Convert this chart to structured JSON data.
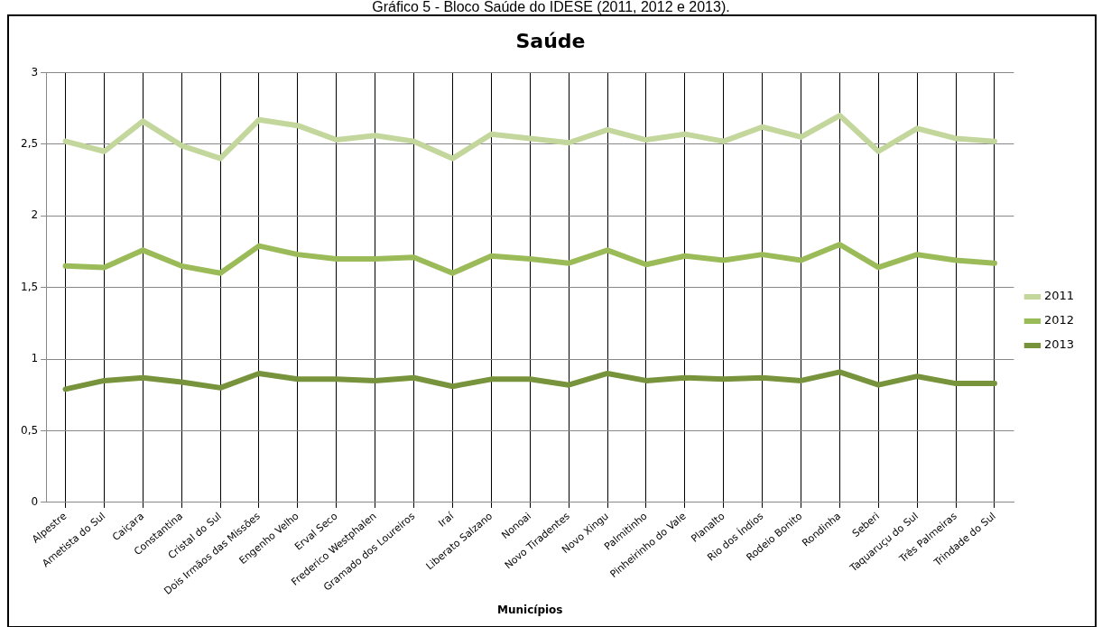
{
  "chart_data": {
    "type": "line",
    "title": "Saúde",
    "xlabel": "Municípios",
    "annotations": [
      "Gráfico 5 - Bloco Saúde do IDESE (2011, 2012 e 2013)."
    ],
    "categories": [
      "Alpestre",
      "Ametista do Sul",
      "Caiçara",
      "Constantina",
      "Cristal do Sul",
      "Dois Irmãos das Missões",
      "Engenho Velho",
      "Erval Seco",
      "Frederico Westphalen",
      "Gramado dos Loureiros",
      "Iraí",
      "Liberato Salzano",
      "Nonoai",
      "Novo Tiradentes",
      "Novo Xingu",
      "Palmitinho",
      "Pinheirinho do Vale",
      "Planalto",
      "Rio dos Índios",
      "Rodeio Bonito",
      "Rondinha",
      "Seberi",
      "Taquaruçu do Sul",
      "Três Palmeiras",
      "Trindade do Sul"
    ],
    "series": [
      {
        "name": "2011",
        "color": "#c3d69b",
        "values": [
          2.52,
          2.45,
          2.66,
          2.49,
          2.4,
          2.67,
          2.63,
          2.53,
          2.56,
          2.52,
          2.4,
          2.57,
          2.54,
          2.51,
          2.6,
          2.53,
          2.57,
          2.52,
          2.62,
          2.55,
          2.7,
          2.45,
          2.61,
          2.54,
          2.52
        ]
      },
      {
        "name": "2012",
        "color": "#9bbb59",
        "values": [
          1.65,
          1.64,
          1.76,
          1.65,
          1.6,
          1.79,
          1.73,
          1.7,
          1.7,
          1.71,
          1.6,
          1.72,
          1.7,
          1.67,
          1.76,
          1.66,
          1.72,
          1.69,
          1.73,
          1.69,
          1.8,
          1.64,
          1.73,
          1.69,
          1.67
        ]
      },
      {
        "name": "2013",
        "color": "#77933c",
        "values": [
          0.79,
          0.85,
          0.87,
          0.84,
          0.8,
          0.9,
          0.86,
          0.86,
          0.85,
          0.87,
          0.81,
          0.86,
          0.86,
          0.82,
          0.9,
          0.85,
          0.87,
          0.86,
          0.87,
          0.85,
          0.91,
          0.82,
          0.88,
          0.83,
          0.83
        ]
      }
    ],
    "ylim": [
      0,
      3
    ],
    "yticks": [
      0,
      {
        "value": 0.5,
        "label": "0,5"
      },
      1,
      {
        "value": 1.5,
        "label": "1,5"
      },
      2,
      {
        "value": 2.5,
        "label": "2,5"
      },
      3
    ],
    "grid": true,
    "legend": "right",
    "marker": "none",
    "line_style": "solid"
  }
}
